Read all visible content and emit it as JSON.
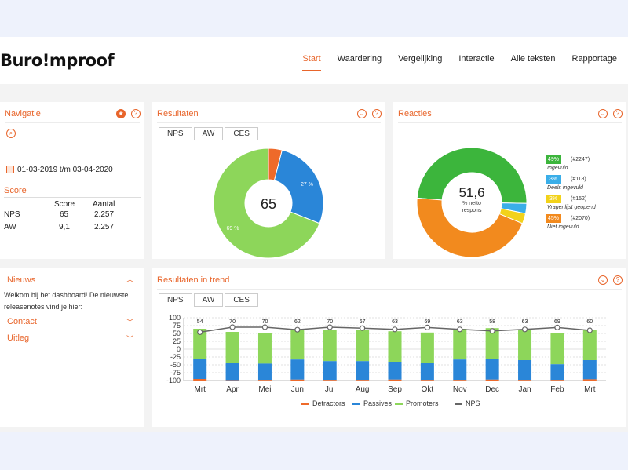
{
  "header": {
    "logo": "Buro!mproof",
    "nav": [
      "Start",
      "Waardering",
      "Vergelijking",
      "Interactie",
      "Alle teksten",
      "Rapportage"
    ],
    "active_nav": "Start"
  },
  "navigatie": {
    "title": "Navigatie",
    "date_range": "01-03-2019 t/m 03-04-2020",
    "score_title": "Score",
    "columns": [
      "Score",
      "Aantal"
    ],
    "rows": [
      {
        "label": "NPS",
        "score": "65",
        "aantal": "2.257"
      },
      {
        "label": "AW",
        "score": "9,1",
        "aantal": "2.257"
      }
    ]
  },
  "resultaten": {
    "title": "Resultaten",
    "tabs": [
      "NPS",
      "AW",
      "CES"
    ],
    "center_value": "65",
    "donut": [
      {
        "value": 4,
        "color": "#ee6a2a",
        "label": ""
      },
      {
        "value": 27,
        "color": "#2a86d8",
        "label": "27 %"
      },
      {
        "value": 69,
        "color": "#8dd65a",
        "label": "69 %"
      }
    ]
  },
  "reacties": {
    "title": "Reacties",
    "center_value": "51,6",
    "center_sub1": "% netto",
    "center_sub2": "respons",
    "legend": [
      {
        "pct": "49%",
        "count": "(#2247)",
        "label": "Ingevuld",
        "color": "#3cb53c"
      },
      {
        "pct": "3%",
        "count": "(#118)",
        "label": "Deels ingevuld",
        "color": "#3aaee8"
      },
      {
        "pct": "3%",
        "count": "(#152)",
        "label": "Vragenlijst geopend",
        "color": "#f2d21a"
      },
      {
        "pct": "45%",
        "count": "(#2070)",
        "label": "Niet ingevuld",
        "color": "#f28a1e"
      }
    ]
  },
  "nieuws": {
    "title": "Nieuws",
    "text": "Welkom bij het dashboard! De nieuwste releasenotes vind je hier:",
    "contact": "Contact",
    "uitleg": "Uitleg"
  },
  "trend": {
    "title": "Resultaten in trend",
    "tabs": [
      "NPS",
      "AW",
      "CES"
    ],
    "legend": [
      "Detractors",
      "Passives",
      "Promoters",
      "NPS"
    ]
  },
  "chart_data": {
    "type": "bar",
    "categories": [
      "Mrt",
      "Apr",
      "Mei",
      "Jun",
      "Jul",
      "Aug",
      "Sep",
      "Okt",
      "Nov",
      "Dec",
      "Jan",
      "Feb",
      "Mrt"
    ],
    "ylim": [
      -100,
      100
    ],
    "yticks": [
      100,
      75,
      50,
      25,
      0,
      -25,
      -50,
      -75,
      -100
    ],
    "series": [
      {
        "name": "Detractors",
        "color": "#ee6a2a",
        "values": [
          -5,
          -1,
          -2,
          -3,
          -2,
          -2,
          -3,
          -2,
          -2,
          -3,
          -2,
          -2,
          -4
        ]
      },
      {
        "name": "Passives",
        "color": "#2a86d8",
        "values": [
          -30,
          -44,
          -46,
          -33,
          -38,
          -38,
          -40,
          -45,
          -33,
          -30,
          -35,
          -48,
          -35
        ]
      },
      {
        "name": "Promoters",
        "color": "#8dd65a",
        "values": [
          65,
          55,
          52,
          64,
          60,
          60,
          57,
          53,
          65,
          67,
          63,
          50,
          61
        ]
      },
      {
        "name": "NPS",
        "color": "#666666",
        "values": [
          54,
          70,
          70,
          62,
          70,
          67,
          63,
          69,
          63,
          58,
          63,
          69,
          60
        ]
      }
    ]
  }
}
